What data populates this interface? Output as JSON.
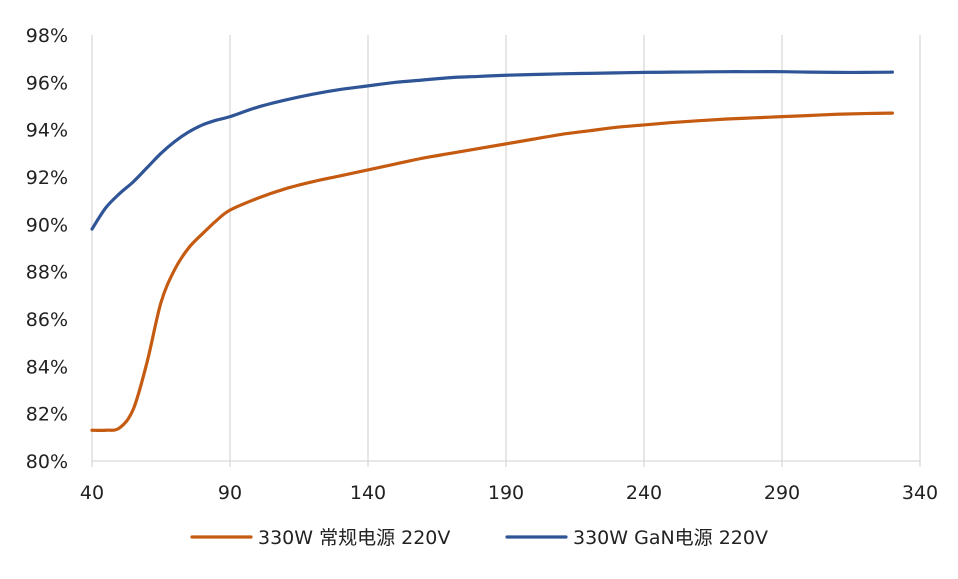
{
  "chart_data": {
    "type": "line",
    "title": "",
    "xlabel": "",
    "ylabel": "",
    "xlim": [
      40,
      340
    ],
    "ylim": [
      80,
      98
    ],
    "x_ticks": [
      40,
      90,
      140,
      190,
      240,
      290,
      340
    ],
    "x_tick_labels": [
      "40",
      "90",
      "140",
      "190",
      "240",
      "290",
      "340"
    ],
    "y_ticks": [
      80,
      82,
      84,
      86,
      88,
      90,
      92,
      94,
      96,
      98
    ],
    "y_tick_labels": [
      "80%",
      "82%",
      "84%",
      "86%",
      "88%",
      "90%",
      "92%",
      "94%",
      "96%",
      "98%"
    ],
    "grid": "vertical",
    "legend": "bottom-center",
    "series": [
      {
        "name": "330W 常规电源 220V",
        "color": "#C55A11",
        "x": [
          40,
          45,
          50,
          55,
          60,
          65,
          70,
          75,
          80,
          85,
          90,
          100,
          110,
          120,
          130,
          140,
          150,
          160,
          170,
          180,
          190,
          200,
          210,
          220,
          230,
          240,
          250,
          260,
          270,
          280,
          290,
          300,
          310,
          320,
          330
        ],
        "y": [
          81.3,
          81.3,
          81.4,
          82.2,
          84.2,
          86.7,
          88.1,
          89.0,
          89.6,
          90.15,
          90.6,
          91.1,
          91.5,
          91.8,
          92.05,
          92.3,
          92.55,
          92.8,
          93.0,
          93.2,
          93.4,
          93.6,
          93.8,
          93.95,
          94.1,
          94.2,
          94.3,
          94.38,
          94.45,
          94.5,
          94.55,
          94.6,
          94.65,
          94.68,
          94.7
        ]
      },
      {
        "name": "330W GaN电源 220V",
        "color": "#2F5597",
        "x": [
          40,
          45,
          50,
          55,
          60,
          65,
          70,
          75,
          80,
          85,
          90,
          100,
          110,
          120,
          130,
          140,
          150,
          160,
          170,
          180,
          190,
          200,
          210,
          220,
          230,
          240,
          250,
          260,
          270,
          280,
          290,
          300,
          310,
          320,
          330
        ],
        "y": [
          89.8,
          90.7,
          91.3,
          91.8,
          92.4,
          93.0,
          93.5,
          93.9,
          94.2,
          94.4,
          94.55,
          94.95,
          95.25,
          95.5,
          95.7,
          95.85,
          96.0,
          96.1,
          96.2,
          96.25,
          96.3,
          96.33,
          96.36,
          96.38,
          96.4,
          96.42,
          96.43,
          96.44,
          96.45,
          96.45,
          96.45,
          96.43,
          96.42,
          96.42,
          96.43
        ]
      }
    ]
  }
}
